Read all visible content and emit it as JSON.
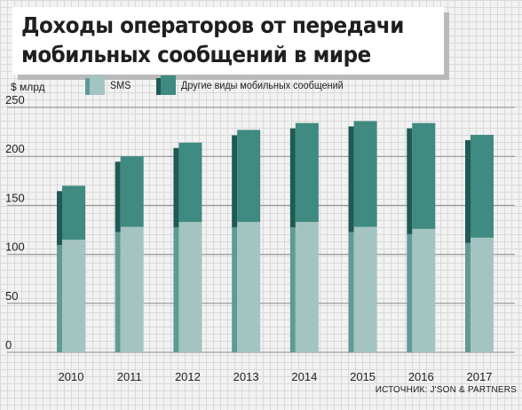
{
  "title": {
    "line1": "Доходы операторов от передачи",
    "line2": "мобильных сообщений в мире"
  },
  "unit_label": "$ млрд",
  "legend": [
    {
      "label": "SMS",
      "color": "#a3c4c0",
      "side_color": "#5f9b95"
    },
    {
      "label": "Другие виды мобильных сообщений",
      "color": "#3f8a81",
      "side_color": "#1f5a55"
    }
  ],
  "source": "ИСТОЧНИК: J'SON & PARTNERS",
  "chart_data": {
    "type": "bar",
    "stacked": true,
    "categories": [
      "2010",
      "2011",
      "2012",
      "2013",
      "2014",
      "2015",
      "2016",
      "2017"
    ],
    "series": [
      {
        "name": "SMS",
        "values": [
          115,
          128,
          133,
          133,
          133,
          128,
          126,
          117
        ]
      },
      {
        "name": "Другие виды мобильных сообщений",
        "values": [
          55,
          72,
          81,
          94,
          101,
          108,
          108,
          105
        ]
      }
    ],
    "ylim": [
      0,
      250
    ],
    "yticks": [
      0,
      50,
      100,
      150,
      200,
      250
    ],
    "grid": true,
    "legend_position": "top-left"
  }
}
